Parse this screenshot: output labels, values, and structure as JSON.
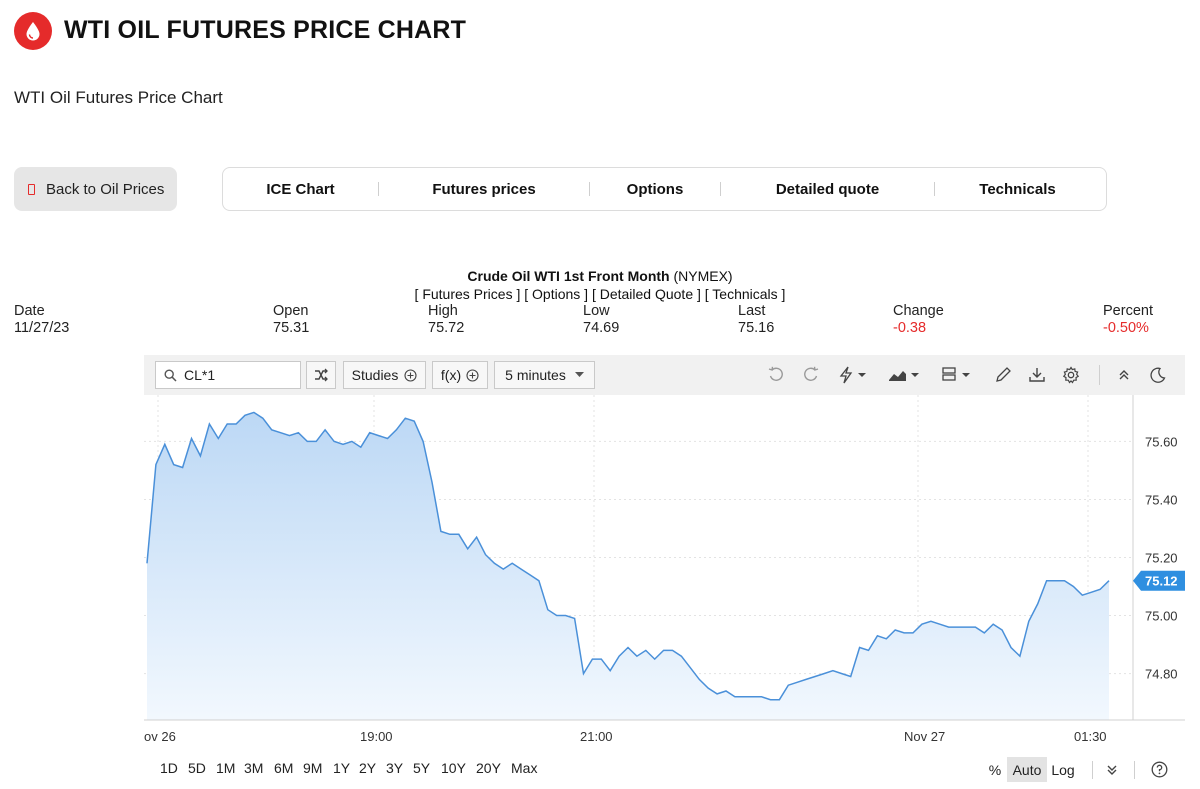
{
  "page": {
    "title": "WTI OIL FUTURES PRICE CHART",
    "subtitle": "WTI Oil Futures Price Chart",
    "brand_color": "#e52b2b"
  },
  "actions": {
    "back_label": "Back to Oil Prices"
  },
  "nav": {
    "items": [
      "ICE Chart",
      "Futures prices",
      "Options",
      "Detailed quote",
      "Technicals"
    ]
  },
  "quote": {
    "instrument": "Crude Oil WTI 1st Front Month",
    "exchange": "(NYMEX)",
    "links": "[ Futures Prices ] [ Options ] [ Detailed Quote ] [ Technicals ]",
    "stats": [
      {
        "label": "Date",
        "value": "11/27/23",
        "negative": false
      },
      {
        "label": "Open",
        "value": "75.31",
        "negative": false
      },
      {
        "label": "High",
        "value": "75.72",
        "negative": false
      },
      {
        "label": "Low",
        "value": "74.69",
        "negative": false
      },
      {
        "label": "Last",
        "value": "75.16",
        "negative": false
      },
      {
        "label": "Change",
        "value": "-0.38",
        "negative": true
      },
      {
        "label": "Percent",
        "value": "-0.50%",
        "negative": true
      }
    ]
  },
  "toolbar": {
    "symbol": "CL*1",
    "studies_label": "Studies",
    "fx_label": "f(x)",
    "interval_label": "5 minutes",
    "icons": [
      "search-icon",
      "compare-icon",
      "undo-icon",
      "redo-icon",
      "lightning-icon",
      "chart-type-icon",
      "layout-icon",
      "pencil-icon",
      "download-icon",
      "gear-icon",
      "collapse-icon",
      "theme-moon-icon"
    ]
  },
  "bottom": {
    "ranges": [
      "1D",
      "5D",
      "1M",
      "3M",
      "6M",
      "9M",
      "1Y",
      "2Y",
      "3Y",
      "5Y",
      "10Y",
      "20Y",
      "Max"
    ],
    "percent_label": "%",
    "auto_label": "Auto",
    "log_label": "Log",
    "help_icon": "help-circle-icon"
  },
  "chart_data": {
    "type": "area",
    "title": "",
    "xlabel": "",
    "ylabel": "",
    "ylim": [
      74.64,
      75.76
    ],
    "y_ticks": [
      75.6,
      75.4,
      75.2,
      75.0,
      74.8
    ],
    "y_tick_labels": [
      "75.60",
      "75.40",
      "75.20",
      "75.00",
      "74.80"
    ],
    "x_tick_labels": [
      "ov 26",
      "19:00",
      "21:00",
      "Nov 27",
      "01:30"
    ],
    "last_value": 75.12,
    "last_value_label": "75.12",
    "line_color": "#4a90d9",
    "fill_color_top": "#bcd8f5",
    "fill_color_bottom": "#f2f8fe",
    "grid": true,
    "legend": "none",
    "values": [
      75.18,
      75.52,
      75.59,
      75.52,
      75.51,
      75.61,
      75.55,
      75.66,
      75.61,
      75.66,
      75.66,
      75.69,
      75.7,
      75.68,
      75.64,
      75.63,
      75.62,
      75.63,
      75.6,
      75.6,
      75.64,
      75.6,
      75.59,
      75.6,
      75.58,
      75.63,
      75.62,
      75.61,
      75.64,
      75.68,
      75.67,
      75.6,
      75.46,
      75.29,
      75.28,
      75.28,
      75.23,
      75.27,
      75.21,
      75.18,
      75.16,
      75.18,
      75.16,
      75.14,
      75.12,
      75.02,
      75.0,
      75.0,
      74.99,
      74.8,
      74.85,
      74.85,
      74.81,
      74.86,
      74.89,
      74.86,
      74.88,
      74.85,
      74.88,
      74.88,
      74.86,
      74.82,
      74.78,
      74.75,
      74.73,
      74.74,
      74.72,
      74.72,
      74.72,
      74.72,
      74.71,
      74.71,
      74.76,
      74.77,
      74.78,
      74.79,
      74.8,
      74.81,
      74.8,
      74.79,
      74.89,
      74.88,
      74.93,
      74.92,
      74.95,
      74.94,
      74.94,
      74.97,
      74.98,
      74.97,
      74.96,
      74.96,
      74.96,
      74.96,
      74.94,
      74.97,
      74.95,
      74.89,
      74.86,
      74.98,
      75.04,
      75.12,
      75.12,
      75.12,
      75.1,
      75.07,
      75.08,
      75.09,
      75.12
    ]
  }
}
